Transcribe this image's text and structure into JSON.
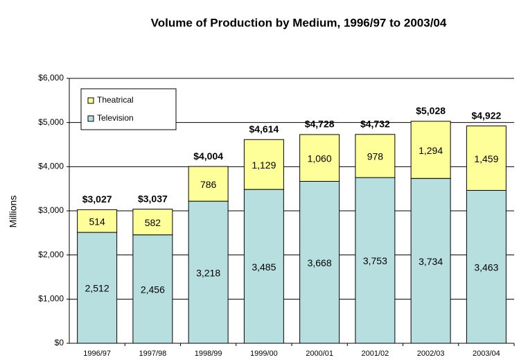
{
  "chart_data": {
    "type": "stacked_bar",
    "title": "Volume of Production by Medium, 1996/97 to 2003/04",
    "y_label": "Millions",
    "categories": [
      "1996/97",
      "1997/98",
      "1998/99",
      "1999/00",
      "2000/01",
      "2001/02",
      "2002/03",
      "2003/04"
    ],
    "series": [
      {
        "name": "Television",
        "color": "#b7dfe0",
        "values": [
          2512,
          2456,
          3218,
          3485,
          3668,
          3753,
          3734,
          3463
        ],
        "value_labels": [
          "2,512",
          "2,456",
          "3,218",
          "3,485",
          "3,668",
          "3,753",
          "3,734",
          "3,463"
        ]
      },
      {
        "name": "Theatrical",
        "color": "#ffff99",
        "values": [
          514,
          582,
          786,
          1129,
          1060,
          978,
          1294,
          1459
        ],
        "value_labels": [
          "514",
          "582",
          "786",
          "1,129",
          "1,060",
          "978",
          "1,294",
          "1,459"
        ]
      }
    ],
    "totals": [
      3027,
      3037,
      4004,
      4614,
      4728,
      4732,
      5028,
      4922
    ],
    "total_labels": [
      "$3,027",
      "$3,037",
      "$4,004",
      "$4,614",
      "$4,728",
      "$4,732",
      "$5,028",
      "$4,922"
    ],
    "ylim": [
      0,
      6000
    ],
    "yticks": [
      {
        "value": 0,
        "label": "$0"
      },
      {
        "value": 1000,
        "label": "$1,000"
      },
      {
        "value": 2000,
        "label": "$2,000"
      },
      {
        "value": 3000,
        "label": "$3,000"
      },
      {
        "value": 4000,
        "label": "$4,000"
      },
      {
        "value": 5000,
        "label": "$5,000"
      },
      {
        "value": 6000,
        "label": "$6,000"
      }
    ],
    "grid": true,
    "legend": "upper left"
  }
}
